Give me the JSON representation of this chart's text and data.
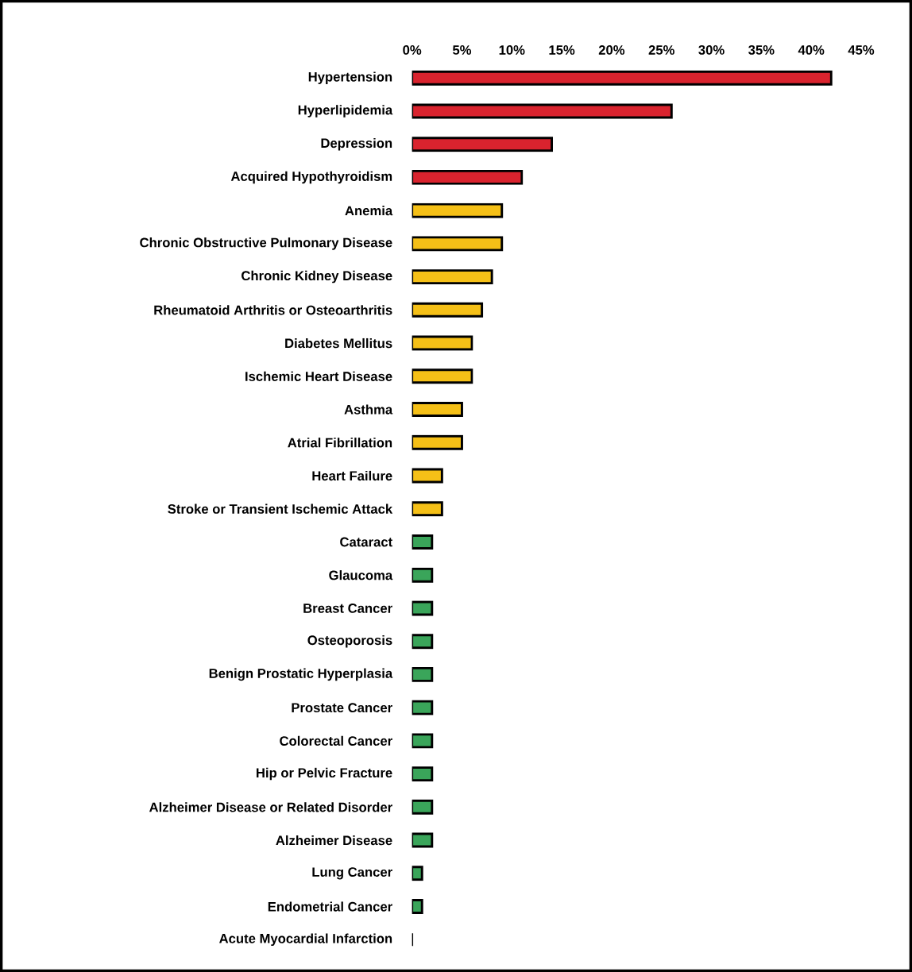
{
  "chart_data": {
    "type": "bar",
    "orientation": "horizontal",
    "categories": [
      "Hypertension",
      "Hyperlipidemia",
      "Depression",
      "Acquired Hypothyroidism",
      "Anemia",
      "Chronic Obstructive Pulmonary Disease",
      "Chronic Kidney Disease",
      "Rheumatoid Arthritis or Osteoarthritis",
      "Diabetes Mellitus",
      "Ischemic Heart Disease",
      "Asthma",
      "Atrial Fibrillation",
      "Heart Failure",
      "Stroke or Transient Ischemic Attack",
      "Cataract",
      "Glaucoma",
      "Breast Cancer",
      "Osteoporosis",
      "Benign Prostatic Hyperplasia",
      "Prostate Cancer",
      "Colorectal Cancer",
      "Hip or Pelvic Fracture",
      "Alzheimer Disease or Related Disorder",
      "Alzheimer Disease",
      "Lung Cancer",
      "Endometrial Cancer",
      "Acute Myocardial Infarction"
    ],
    "values": [
      42,
      26,
      14,
      11,
      9,
      9,
      8,
      7,
      6,
      6,
      5,
      5,
      3,
      3,
      2,
      2,
      2,
      2,
      2,
      2,
      2,
      2,
      2,
      2,
      1,
      1,
      0
    ],
    "colors": [
      "#d9232e",
      "#d9232e",
      "#d9232e",
      "#d9232e",
      "#f5c017",
      "#f5c017",
      "#f5c017",
      "#f5c017",
      "#f5c017",
      "#f5c017",
      "#f5c017",
      "#f5c017",
      "#f5c017",
      "#f5c017",
      "#3aa55a",
      "#3aa55a",
      "#3aa55a",
      "#3aa55a",
      "#3aa55a",
      "#3aa55a",
      "#3aa55a",
      "#3aa55a",
      "#3aa55a",
      "#3aa55a",
      "#3aa55a",
      "#3aa55a",
      "#3aa55a"
    ],
    "xlim": [
      0,
      45
    ],
    "xticks": [
      {
        "value": 0,
        "label": "0%"
      },
      {
        "value": 5,
        "label": "5%"
      },
      {
        "value": 10,
        "label": "10%"
      },
      {
        "value": 15,
        "label": "15%"
      },
      {
        "value": 20,
        "label": "20%"
      },
      {
        "value": 25,
        "label": "25%"
      },
      {
        "value": 30,
        "label": "30%"
      },
      {
        "value": 35,
        "label": "35%"
      },
      {
        "value": 40,
        "label": "40%"
      },
      {
        "value": 45,
        "label": "45%"
      }
    ]
  }
}
